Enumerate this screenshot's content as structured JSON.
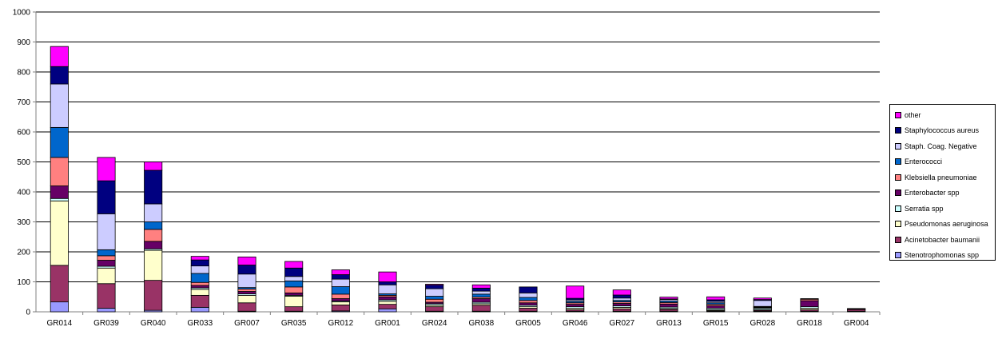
{
  "chart_data": {
    "type": "bar",
    "stacked": true,
    "title": "",
    "xlabel": "",
    "ylabel": "",
    "ylim": [
      0,
      1000
    ],
    "yticks": [
      0,
      100,
      200,
      300,
      400,
      500,
      600,
      700,
      800,
      900,
      1000
    ],
    "grid": true,
    "legend_position": "right",
    "categories": [
      "GR014",
      "GR039",
      "GR040",
      "GR033",
      "GR007",
      "GR035",
      "GR012",
      "GR001",
      "GR024",
      "GR038",
      "GR005",
      "GR046",
      "GR027",
      "GR013",
      "GR015",
      "GR028",
      "GR018",
      "GR004"
    ],
    "series": [
      {
        "name": "Stenotrophomonas spp",
        "color": "#9999FF",
        "values": [
          33,
          12,
          5,
          15,
          2,
          2,
          3,
          10,
          2,
          2,
          2,
          2,
          2,
          2,
          2,
          2,
          2,
          2
        ]
      },
      {
        "name": "Acinetobacter baumanii",
        "color": "#993366",
        "values": [
          122,
          82,
          100,
          40,
          28,
          15,
          20,
          15,
          15,
          20,
          10,
          5,
          8,
          6,
          2,
          3,
          5,
          6
        ]
      },
      {
        "name": "Pseudomonas aeruginosa",
        "color": "#FFFFCC",
        "values": [
          215,
          52,
          100,
          20,
          25,
          35,
          10,
          10,
          5,
          5,
          5,
          5,
          5,
          3,
          3,
          2,
          5,
          1
        ]
      },
      {
        "name": "Serratia spp",
        "color": "#CCFFFF",
        "values": [
          8,
          6,
          5,
          5,
          5,
          3,
          3,
          5,
          5,
          5,
          5,
          5,
          5,
          5,
          5,
          5,
          5,
          1
        ]
      },
      {
        "name": "Enterobacter spp",
        "color": "#660066",
        "values": [
          42,
          20,
          25,
          8,
          8,
          8,
          8,
          10,
          5,
          12,
          8,
          8,
          8,
          10,
          8,
          2,
          20,
          1
        ]
      },
      {
        "name": "Klebsiella pneumoniae",
        "color": "#FF8080",
        "values": [
          95,
          15,
          40,
          10,
          8,
          20,
          15,
          5,
          10,
          5,
          8,
          5,
          5,
          5,
          5,
          2,
          5,
          0
        ]
      },
      {
        "name": "Enterococci",
        "color": "#0066CC",
        "values": [
          100,
          20,
          25,
          30,
          5,
          20,
          25,
          5,
          10,
          10,
          10,
          5,
          5,
          5,
          5,
          2,
          2,
          0
        ]
      },
      {
        "name": "Staph. Coag. Negative",
        "color": "#CCCCFF",
        "values": [
          145,
          120,
          60,
          25,
          45,
          15,
          25,
          30,
          25,
          10,
          15,
          5,
          8,
          5,
          5,
          20,
          0,
          0
        ]
      },
      {
        "name": "Staphylococcus aureus",
        "color": "#000080",
        "values": [
          58,
          110,
          112,
          20,
          30,
          28,
          15,
          10,
          12,
          10,
          20,
          5,
          10,
          2,
          5,
          3,
          0,
          0
        ]
      },
      {
        "name": "other",
        "color": "#FF00FF",
        "values": [
          67,
          78,
          28,
          12,
          27,
          22,
          16,
          33,
          3,
          11,
          0,
          41,
          17,
          6,
          10,
          5,
          0,
          0
        ]
      }
    ]
  }
}
